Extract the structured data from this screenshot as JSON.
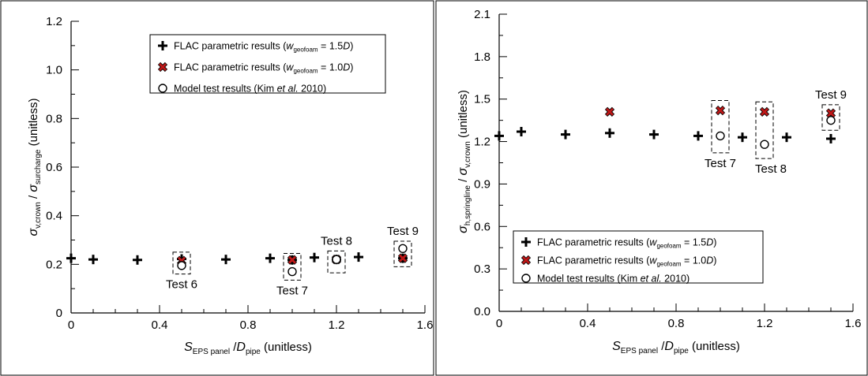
{
  "colors": {
    "plus": "#000000",
    "cross": "#c01818",
    "circle": "#000000",
    "background": "#ffffff"
  },
  "legend_entries": [
    {
      "symbol": "plus",
      "prefix": "FLAC parametric results (",
      "var": "w",
      "sub": "geofoam",
      "suffix": " = 1.5",
      "italic": "D",
      "close": ")"
    },
    {
      "symbol": "cross",
      "prefix": "FLAC parametric results (",
      "var": "w",
      "sub": "geofoam",
      "suffix": " = 1.0",
      "italic": "D",
      "close": ")"
    },
    {
      "symbol": "circle",
      "prefix": "Model test results (Kim ",
      "var": "et al.",
      "sub": "",
      "suffix": " 2010",
      "italic": "",
      "close": ")"
    }
  ],
  "chart_data": [
    {
      "type": "scatter",
      "xlabel": {
        "var": "S",
        "sub1": "EPS panel",
        "mid": " /",
        "var2": "D",
        "sub2": "pipe",
        "tail": " (unitless)"
      },
      "ylabel": {
        "var": "σ",
        "sub1": "v,crown",
        "mid": " / ",
        "var2": "σ",
        "sub2": "surcharge",
        "tail": " (unitless)"
      },
      "xlim": [
        0,
        1.6
      ],
      "ylim": [
        0,
        1.2
      ],
      "xticks": [
        "0",
        "0.4",
        "0.8",
        "1.2",
        "1.6"
      ],
      "yticks": [
        "0",
        "0.2",
        "0.4",
        "0.6",
        "0.8",
        "1.0",
        "1.2"
      ],
      "legend_position": "top-right",
      "series": [
        {
          "symbol": "plus",
          "x": [
            0,
            0.1,
            0.3,
            0.5,
            0.7,
            0.9,
            1.0,
            1.1,
            1.2,
            1.3,
            1.5
          ],
          "y": [
            0.225,
            0.22,
            0.218,
            0.222,
            0.22,
            0.225,
            0.218,
            0.228,
            0.22,
            0.23,
            0.225
          ]
        },
        {
          "symbol": "cross",
          "x": [
            0.5,
            1.0,
            1.2,
            1.5
          ],
          "y": [
            0.215,
            0.218,
            0.22,
            0.225
          ]
        },
        {
          "symbol": "circle",
          "x": [
            0.5,
            1.0,
            1.2,
            1.5
          ],
          "y": [
            0.195,
            0.17,
            0.22,
            0.265
          ]
        }
      ],
      "annotations": [
        {
          "text": "Test 6",
          "x": 0.5,
          "y_lo": 0.16,
          "y_hi": 0.25,
          "label_pos": "below"
        },
        {
          "text": "Test 7",
          "x": 1.0,
          "y_lo": 0.135,
          "y_hi": 0.245,
          "label_pos": "below"
        },
        {
          "text": "Test 8",
          "x": 1.2,
          "y_lo": 0.165,
          "y_hi": 0.255,
          "label_pos": "above"
        },
        {
          "text": "Test 9",
          "x": 1.5,
          "y_lo": 0.19,
          "y_hi": 0.295,
          "label_pos": "above"
        }
      ]
    },
    {
      "type": "scatter",
      "xlabel": {
        "var": "S",
        "sub1": "EPS panel",
        "mid": " /",
        "var2": "D",
        "sub2": "pipe",
        "tail": " (unitless)"
      },
      "ylabel": {
        "var": "σ",
        "sub1": "h,springline",
        "mid": " / ",
        "var2": "σ",
        "sub2": "v,crown",
        "tail": " (unitless)"
      },
      "xlim": [
        0,
        1.6
      ],
      "ylim": [
        0,
        2.1
      ],
      "xticks": [
        "0",
        "0.4",
        "0.8",
        "1.2",
        "1.6"
      ],
      "yticks": [
        "0.0",
        "0.3",
        "0.6",
        "0.9",
        "1.2",
        "1.5",
        "1.8",
        "2.1"
      ],
      "legend_position": "bottom-left",
      "series": [
        {
          "symbol": "plus",
          "x": [
            0,
            0.1,
            0.3,
            0.5,
            0.7,
            0.9,
            1.1,
            1.3,
            1.5
          ],
          "y": [
            1.24,
            1.27,
            1.25,
            1.26,
            1.25,
            1.24,
            1.23,
            1.23,
            1.22
          ]
        },
        {
          "symbol": "cross",
          "x": [
            0.5,
            1.0,
            1.2,
            1.5
          ],
          "y": [
            1.41,
            1.42,
            1.41,
            1.4
          ]
        },
        {
          "symbol": "circle",
          "x": [
            1.0,
            1.2,
            1.5
          ],
          "y": [
            1.24,
            1.18,
            1.35
          ]
        }
      ],
      "annotations": [
        {
          "text": "Test 7",
          "x": 1.0,
          "y_lo": 1.12,
          "y_hi": 1.49,
          "label_pos": "below"
        },
        {
          "text": "Test 8",
          "x": 1.2,
          "y_lo": 1.08,
          "y_hi": 1.48,
          "label_pos": "below-right"
        },
        {
          "text": "Test 9",
          "x": 1.5,
          "y_lo": 1.28,
          "y_hi": 1.46,
          "label_pos": "above"
        }
      ]
    }
  ]
}
